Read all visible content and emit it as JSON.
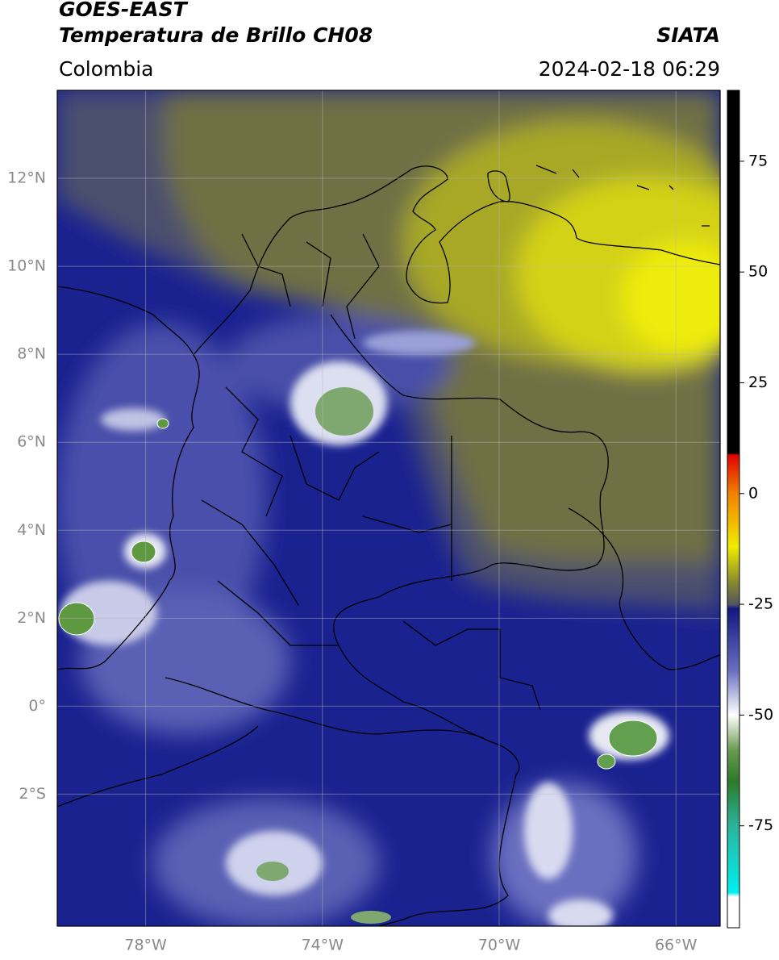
{
  "chart_data": {
    "type": "map",
    "title": "GOES-EAST",
    "subtitle": "Temperatura de Brillo CH08",
    "source": "SIATA",
    "region": "Colombia",
    "datetime": "2024-02-18 06:29",
    "xlim": [
      -80,
      -65
    ],
    "ylim": [
      -5,
      14
    ],
    "xticks": [
      {
        "value": -78,
        "label": "78°W"
      },
      {
        "value": -74,
        "label": "74°W"
      },
      {
        "value": -70,
        "label": "70°W"
      },
      {
        "value": -66,
        "label": "66°W"
      }
    ],
    "yticks": [
      {
        "value": -2,
        "label": "2°S"
      },
      {
        "value": 0,
        "label": "0°"
      },
      {
        "value": 2,
        "label": "2°N"
      },
      {
        "value": 4,
        "label": "4°N"
      },
      {
        "value": 6,
        "label": "6°N"
      },
      {
        "value": 8,
        "label": "8°N"
      },
      {
        "value": 10,
        "label": "10°N"
      },
      {
        "value": 12,
        "label": "12°N"
      }
    ],
    "grid": true,
    "colorbar": {
      "lim": [
        -98,
        91
      ],
      "ticks": [
        -75,
        -50,
        -25,
        0,
        25,
        50,
        75
      ]
    }
  }
}
